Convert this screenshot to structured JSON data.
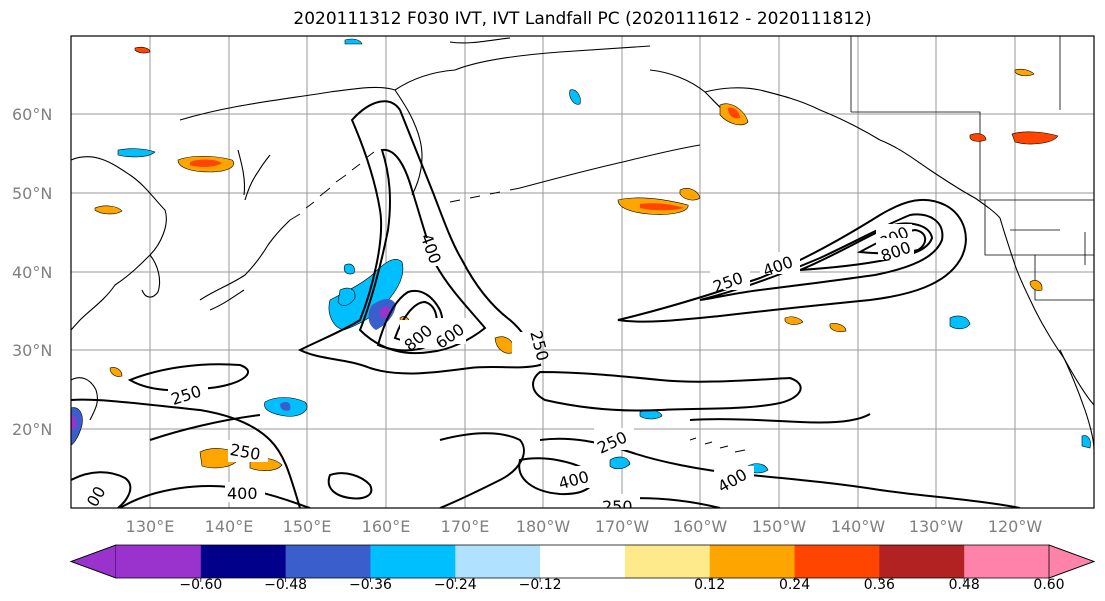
{
  "title": "2020111312 F030 IVT, IVT Landfall PC (2020111612 - 2020111812)",
  "lat_ticks": [
    "60°N",
    "50°N",
    "40°N",
    "30°N",
    "20°N"
  ],
  "lon_ticks": [
    "130°E",
    "140°E",
    "150°E",
    "160°E",
    "170°E",
    "180°W",
    "170°W",
    "160°W",
    "150°W",
    "140°W",
    "130°W",
    "120°W"
  ],
  "colorbar": {
    "labels": [
      "−0.60",
      "−0.48",
      "−0.36",
      "−0.24",
      "−0.12",
      "0.12",
      "0.24",
      "0.36",
      "0.48",
      "0.60"
    ],
    "colors": [
      "#9a32cd",
      "#00008b",
      "#3a5fcd",
      "#00bfff",
      "#b0e2ff",
      "#ffffff",
      "#fee98b",
      "#ffa500",
      "#ff4500",
      "#b22222",
      "#ff82ab"
    ]
  },
  "contour_labels": [
    "250",
    "400",
    "600",
    "800",
    "250",
    "600",
    "400",
    "250",
    "400",
    "800",
    "800",
    "250",
    "250",
    "400",
    "250",
    "400",
    "250",
    "400",
    "00"
  ]
}
